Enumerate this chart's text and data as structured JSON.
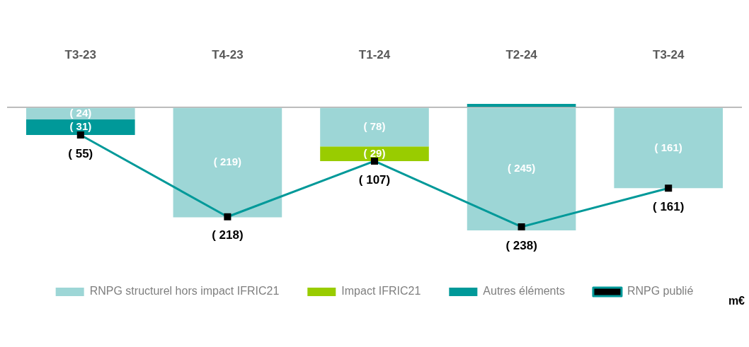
{
  "chart_data": {
    "type": "bar",
    "stacked": true,
    "categories": [
      "T3-23",
      "T4-23",
      "T1-24",
      "T2-24",
      "T3-24"
    ],
    "series": [
      {
        "name": "RNPG structurel hors impact IFRIC21",
        "color": "#9dd6d6",
        "values": [
          -24,
          -219,
          -78,
          -245,
          -161
        ],
        "value_labels": [
          "( 24)",
          "( 219)",
          "( 78)",
          "( 245)",
          "( 161)"
        ]
      },
      {
        "name": "Impact IFRIC21",
        "color": "#99cc00",
        "values": [
          null,
          null,
          -29,
          null,
          null
        ],
        "value_labels": [
          null,
          null,
          "( 29)",
          null,
          null
        ]
      },
      {
        "name": "Autres éléments",
        "color": "#009999",
        "values": [
          -31,
          null,
          null,
          7,
          null
        ],
        "value_labels": [
          "( 31)",
          null,
          null,
          null,
          null
        ]
      },
      {
        "name": "RNPG publié",
        "type": "line",
        "color": "#009999",
        "values": [
          -55,
          -218,
          -107,
          -238,
          -161
        ],
        "value_labels": [
          "( 55)",
          "( 218)",
          "( 107)",
          "( 238)",
          "( 161)"
        ]
      }
    ],
    "tick_labels": "x",
    "marker": "square",
    "line_style": "solid",
    "legend": "bottom",
    "annotations": [
      "m€"
    ]
  }
}
